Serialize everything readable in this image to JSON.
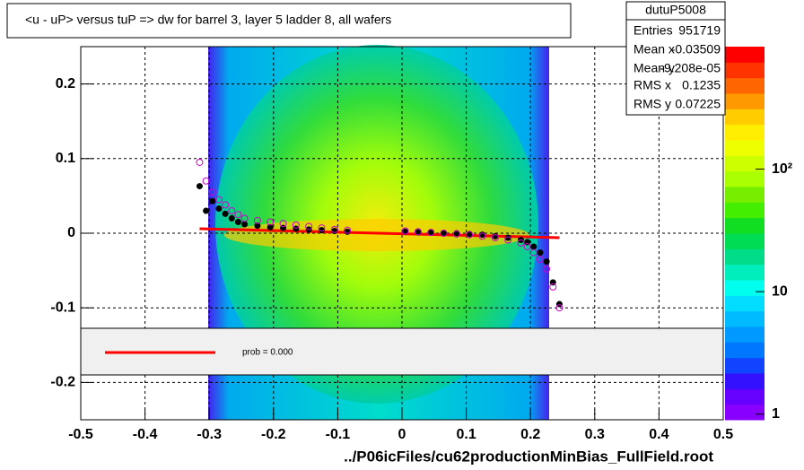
{
  "chart_data": {
    "type": "scatter",
    "title": "<u - uP>       versus  tuP =>  dw for barrel 3, layer 5 ladder 8, all wafers",
    "footer": "../P06icFiles/cu62productionMinBias_FullField.root",
    "xlim": [
      -0.5,
      0.5
    ],
    "ylim": [
      -0.25,
      0.25
    ],
    "xticks": [
      -0.5,
      -0.4,
      -0.3,
      -0.2,
      -0.1,
      0,
      0.1,
      0.2,
      0.3,
      0.4,
      0.5
    ],
    "yticks": [
      -0.2,
      -0.1,
      0,
      0.1,
      0.2
    ],
    "grid": true,
    "zlog": true,
    "zlim": [
      0.9,
      1000
    ],
    "zticks": [
      1,
      10,
      {
        "value": 100,
        "label": "10²"
      }
    ],
    "x": [
      -0.315,
      -0.305,
      -0.295,
      -0.285,
      -0.275,
      -0.265,
      -0.255,
      -0.245,
      -0.225,
      -0.205,
      -0.185,
      -0.165,
      -0.145,
      -0.125,
      -0.105,
      -0.085,
      0.005,
      0.025,
      0.045,
      0.065,
      0.085,
      0.105,
      0.125,
      0.145,
      0.165,
      0.185,
      0.195,
      0.205,
      0.215,
      0.225,
      0.235,
      0.245
    ],
    "series": [
      {
        "color": "#000000",
        "marker": "filled",
        "values": [
          0.063,
          0.03,
          0.043,
          0.033,
          0.026,
          0.02,
          0.015,
          0.012,
          0.01,
          0.008,
          0.007,
          0.006,
          0.005,
          0.004,
          0.003,
          0.002,
          0.002,
          0.001,
          0.001,
          0.0,
          0.0,
          -0.001,
          -0.002,
          -0.004,
          -0.006,
          -0.009,
          -0.012,
          -0.018,
          -0.026,
          -0.038,
          -0.066,
          -0.095
        ]
      },
      {
        "color": "#cc00cc",
        "marker": "open",
        "values": [
          0.095,
          0.07,
          0.055,
          0.045,
          0.038,
          0.03,
          0.025,
          0.02,
          0.017,
          0.015,
          0.013,
          0.011,
          0.009,
          0.007,
          0.005,
          0.004,
          0.003,
          0.002,
          0.001,
          0.0,
          -0.001,
          -0.002,
          -0.004,
          -0.006,
          -0.009,
          -0.013,
          -0.018,
          -0.026,
          -0.035,
          -0.048,
          -0.072,
          -0.1
        ]
      }
    ],
    "fit": {
      "color": "#ff0000",
      "x": [
        -0.315,
        0.245
      ],
      "values": [
        0.006,
        -0.006
      ]
    },
    "legend": {
      "text": "prob = 0.000"
    },
    "stats": {
      "name": "dutuP5008",
      "rows": [
        [
          "Entries",
          "951719"
        ],
        [
          "Mean x",
          "-0.03509"
        ],
        [
          "Mean y",
          "-9.208e-05"
        ],
        [
          "RMS x",
          "0.1235"
        ],
        [
          "RMS y",
          "0.07225"
        ]
      ]
    }
  }
}
